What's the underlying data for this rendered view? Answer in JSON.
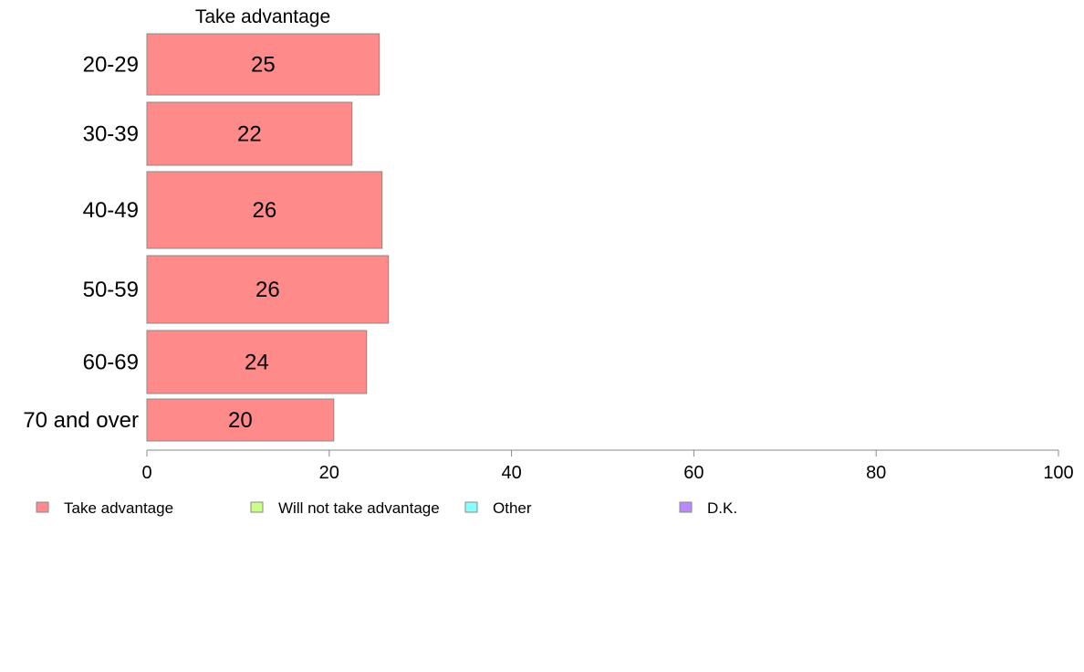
{
  "chart_data": {
    "type": "bar",
    "orientation": "horizontal",
    "title": "Take advantage",
    "categories": [
      "20-29",
      "30-39",
      "40-49",
      "50-59",
      "60-69",
      "70 and over"
    ],
    "series": [
      {
        "name": "Take advantage",
        "values": [
          25.5,
          22.5,
          25.8,
          26.5,
          24.1,
          20.5
        ],
        "value_labels": [
          "25",
          "22",
          "26",
          "26",
          "24",
          "20"
        ],
        "color": "#ff8a8a"
      }
    ],
    "xlim": [
      0,
      100
    ],
    "x_ticks": [
      0,
      20,
      40,
      60,
      80,
      100
    ],
    "grid": false,
    "legend_placement": "bottom",
    "legend": [
      {
        "label": "Take advantage",
        "color": "#ff8a8a"
      },
      {
        "label": "Will not take advantage",
        "color": "#ccff88"
      },
      {
        "label": "Other",
        "color": "#88ffff"
      },
      {
        "label": "D.K.",
        "color": "#bb88ff"
      }
    ],
    "bar_edge_color": "#888888",
    "axis_color": "#888888"
  }
}
